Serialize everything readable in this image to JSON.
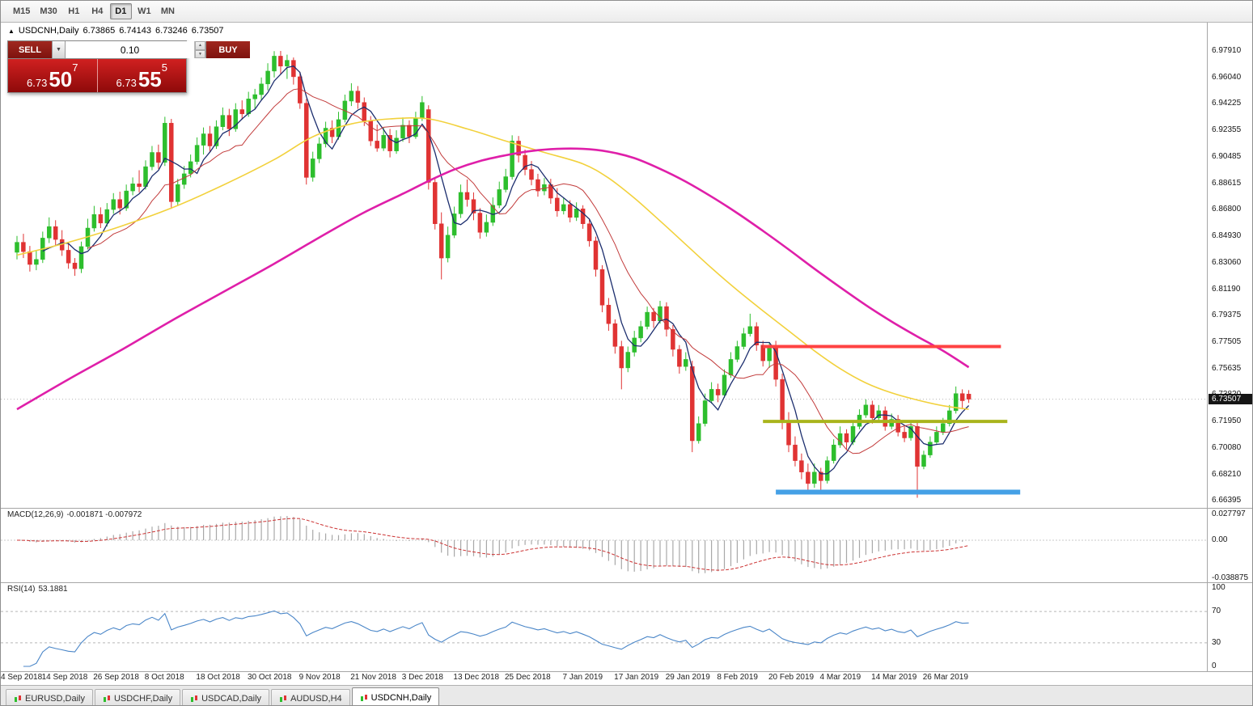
{
  "toolbar": {
    "timeframes": [
      {
        "label": "M15",
        "active": false
      },
      {
        "label": "M30",
        "active": false
      },
      {
        "label": "H1",
        "active": false
      },
      {
        "label": "H4",
        "active": false
      },
      {
        "label": "D1",
        "active": true
      },
      {
        "label": "W1",
        "active": false
      },
      {
        "label": "MN",
        "active": false
      }
    ]
  },
  "icons": {
    "collapse": "▲",
    "dropdown": "▼",
    "spin_up": "▲",
    "spin_down": "▼"
  },
  "chart": {
    "header": {
      "symbol_tf": "USDCNH,Daily",
      "open": "6.73865",
      "high": "6.74143",
      "low": "6.73246",
      "close": "6.73507"
    },
    "trade_panel": {
      "sell_label": "SELL",
      "buy_label": "BUY",
      "volume": "0.10",
      "sell_price_big": "6.73",
      "sell_price_pips": "50",
      "sell_price_sup": "7",
      "buy_price_big": "6.73",
      "buy_price_pips": "55",
      "buy_price_sup": "5"
    },
    "price_scale": [
      "6.97910",
      "6.96040",
      "6.94225",
      "6.92355",
      "6.90485",
      "6.88615",
      "6.86800",
      "6.84930",
      "6.83060",
      "6.81190",
      "6.79375",
      "6.77505",
      "6.75635",
      "6.73820",
      "6.71950",
      "6.70080",
      "6.68210",
      "6.66395"
    ],
    "current_price_label": "6.73507"
  },
  "indicators": {
    "macd": {
      "name": "MACD(12,26,9)",
      "values": "-0.001871 -0.007972",
      "scale": [
        "0.027797",
        "0.00",
        "-0.038875"
      ]
    },
    "rsi": {
      "name": "RSI(14)",
      "value": "53.1881",
      "scale": [
        "100",
        "70",
        "30",
        "0"
      ]
    }
  },
  "tabs": [
    {
      "label": "EURUSD,Daily",
      "active": false
    },
    {
      "label": "USDCHF,Daily",
      "active": false
    },
    {
      "label": "USDCAD,Daily",
      "active": false
    },
    {
      "label": "AUDUSD,H4",
      "active": false
    },
    {
      "label": "USDCNH,Daily",
      "active": true
    }
  ],
  "chart_data": {
    "type": "candlestick",
    "symbol": "USDCNH",
    "timeframe": "Daily",
    "current_price": 6.73507,
    "ylim": [
      6.66395,
      6.9791
    ],
    "x_tick_labels": [
      "4 Sep 2018",
      "14 Sep 2018",
      "26 Sep 2018",
      "8 Oct 2018",
      "18 Oct 2018",
      "30 Oct 2018",
      "9 Nov 2018",
      "21 Nov 2018",
      "3 Dec 2018",
      "13 Dec 2018",
      "25 Dec 2018",
      "7 Jan 2019",
      "17 Jan 2019",
      "29 Jan 2019",
      "8 Feb 2019",
      "20 Feb 2019",
      "4 Mar 2019",
      "14 Mar 2019",
      "26 Mar 2019"
    ],
    "x_tick_indices": [
      0,
      8,
      16,
      24,
      32,
      40,
      48,
      56,
      64,
      72,
      80,
      89,
      97,
      105,
      113,
      121,
      129,
      137,
      145
    ],
    "candles": [
      [
        6.838,
        6.8495,
        6.833,
        6.845
      ],
      [
        6.845,
        6.851,
        6.834,
        6.8385
      ],
      [
        6.8385,
        6.8425,
        6.8245,
        6.8295
      ],
      [
        6.8295,
        6.8395,
        6.8255,
        6.833
      ],
      [
        6.833,
        6.8525,
        6.8305,
        6.848
      ],
      [
        6.848,
        6.8625,
        6.8445,
        6.856
      ],
      [
        6.856,
        6.8605,
        6.8425,
        6.847
      ],
      [
        6.847,
        6.8535,
        6.8355,
        6.8395
      ],
      [
        6.8395,
        6.8445,
        6.8265,
        6.8305
      ],
      [
        6.8305,
        6.834,
        6.8215,
        6.8265
      ],
      [
        6.8265,
        6.8455,
        6.8235,
        6.842
      ],
      [
        6.842,
        6.8615,
        6.84,
        6.855
      ],
      [
        6.855,
        6.8705,
        6.8525,
        6.8645
      ],
      [
        6.8645,
        6.8695,
        6.855,
        6.8585
      ],
      [
        6.8585,
        6.8725,
        6.856,
        6.868
      ],
      [
        6.868,
        6.8795,
        6.865,
        6.875
      ],
      [
        6.875,
        6.8805,
        6.8645,
        6.869
      ],
      [
        6.869,
        6.8855,
        6.867,
        6.881
      ],
      [
        6.881,
        6.8905,
        6.878,
        6.886
      ],
      [
        6.886,
        6.8955,
        6.88,
        6.884
      ],
      [
        6.884,
        6.9025,
        6.882,
        6.898
      ],
      [
        6.898,
        6.9125,
        6.8955,
        6.908
      ],
      [
        6.908,
        6.9135,
        6.8965,
        6.901
      ],
      [
        6.901,
        6.933,
        6.8985,
        6.9285
      ],
      [
        6.9285,
        6.9315,
        6.8685,
        6.8735
      ],
      [
        6.8735,
        6.8895,
        6.8705,
        6.8855
      ],
      [
        6.8855,
        6.8985,
        6.8825,
        6.893
      ],
      [
        6.893,
        6.9065,
        6.8905,
        6.9015
      ],
      [
        6.9015,
        6.9185,
        6.8995,
        6.913
      ],
      [
        6.913,
        6.9255,
        6.9065,
        6.921
      ],
      [
        6.921,
        6.9265,
        6.9085,
        6.9125
      ],
      [
        6.9125,
        6.9305,
        6.9105,
        6.926
      ],
      [
        6.926,
        6.9395,
        6.9235,
        6.934
      ],
      [
        6.934,
        6.9385,
        6.9195,
        6.9245
      ],
      [
        6.9245,
        6.9425,
        6.9225,
        6.938
      ],
      [
        6.938,
        6.9445,
        6.931,
        6.935
      ],
      [
        6.935,
        6.9505,
        6.933,
        6.9455
      ],
      [
        6.9455,
        6.9525,
        6.9385,
        6.9485
      ],
      [
        6.9485,
        6.9605,
        6.9445,
        6.956
      ],
      [
        6.956,
        6.9705,
        6.9515,
        6.965
      ],
      [
        6.965,
        6.979,
        6.9605,
        6.9755
      ],
      [
        6.9755,
        6.9791,
        6.9625,
        6.9685
      ],
      [
        6.9685,
        6.9765,
        6.9595,
        6.9725
      ],
      [
        6.9725,
        6.9745,
        6.9555,
        6.961
      ],
      [
        6.961,
        6.9645,
        6.9385,
        6.9425
      ],
      [
        6.9425,
        6.9455,
        6.8855,
        6.8905
      ],
      [
        6.8905,
        6.9085,
        6.8875,
        6.9035
      ],
      [
        6.9035,
        6.9185,
        6.9005,
        6.914
      ],
      [
        6.914,
        6.9295,
        6.9115,
        6.925
      ],
      [
        6.925,
        6.9305,
        6.9145,
        6.919
      ],
      [
        6.919,
        6.9365,
        6.917,
        6.931
      ],
      [
        6.931,
        6.9485,
        6.929,
        6.944
      ],
      [
        6.944,
        6.9565,
        6.9405,
        6.951
      ],
      [
        6.951,
        6.9545,
        6.9385,
        6.943
      ],
      [
        6.943,
        6.9465,
        6.9265,
        6.93
      ],
      [
        6.93,
        6.9335,
        6.9125,
        6.916
      ],
      [
        6.916,
        6.9275,
        6.9085,
        6.911
      ],
      [
        6.911,
        6.9255,
        6.909,
        6.92
      ],
      [
        6.92,
        6.9245,
        6.9045,
        6.909
      ],
      [
        6.909,
        6.9235,
        6.907,
        6.918
      ],
      [
        6.918,
        6.9325,
        6.9155,
        6.927
      ],
      [
        6.927,
        6.9305,
        6.9145,
        6.919
      ],
      [
        6.919,
        6.9365,
        6.9175,
        6.932
      ],
      [
        6.932,
        6.9475,
        6.93,
        6.943
      ],
      [
        6.938,
        6.941,
        6.882,
        6.887
      ],
      [
        6.887,
        6.89,
        6.854,
        6.858
      ],
      [
        6.858,
        6.866,
        6.819,
        6.834
      ],
      [
        6.834,
        6.856,
        6.831,
        6.85
      ],
      [
        6.85,
        6.87,
        6.848,
        6.865
      ],
      [
        6.865,
        6.8855,
        6.862,
        6.88
      ],
      [
        6.88,
        6.889,
        6.87,
        6.875
      ],
      [
        6.875,
        6.88,
        6.8605,
        6.8655
      ],
      [
        6.8655,
        6.869,
        6.8475,
        6.852
      ],
      [
        6.852,
        6.8645,
        6.849,
        6.859
      ],
      [
        6.859,
        6.8765,
        6.8565,
        6.871
      ],
      [
        6.871,
        6.8875,
        6.869,
        6.882
      ],
      [
        6.882,
        6.8965,
        6.88,
        6.891
      ],
      [
        6.891,
        6.92,
        6.889,
        6.916
      ],
      [
        6.916,
        6.9195,
        6.901,
        6.906
      ],
      [
        6.906,
        6.91,
        6.892,
        6.896
      ],
      [
        6.896,
        6.902,
        6.885,
        6.889
      ],
      [
        6.889,
        6.893,
        6.877,
        6.881
      ],
      [
        6.881,
        6.89,
        6.878,
        6.8855
      ],
      [
        6.8855,
        6.8895,
        6.872,
        6.876
      ],
      [
        6.876,
        6.883,
        6.863,
        6.867
      ],
      [
        6.867,
        6.876,
        6.8645,
        6.8715
      ],
      [
        6.8715,
        6.8745,
        6.859,
        6.8625
      ],
      [
        6.8625,
        6.873,
        6.86,
        6.8685
      ],
      [
        6.8685,
        6.871,
        6.8545,
        6.858
      ],
      [
        6.858,
        6.861,
        6.842,
        6.846
      ],
      [
        6.846,
        6.849,
        6.821,
        6.826
      ],
      [
        6.826,
        6.829,
        6.796,
        6.801
      ],
      [
        6.801,
        6.806,
        6.783,
        6.788
      ],
      [
        6.788,
        6.791,
        6.767,
        6.772
      ],
      [
        6.772,
        6.776,
        6.742,
        6.757
      ],
      [
        6.757,
        6.772,
        6.754,
        6.768
      ],
      [
        6.768,
        6.783,
        6.765,
        6.778
      ],
      [
        6.778,
        6.79,
        6.775,
        6.786
      ],
      [
        6.786,
        6.8,
        6.784,
        6.796
      ],
      [
        6.796,
        6.799,
        6.785,
        6.79
      ],
      [
        6.79,
        6.804,
        6.788,
        6.8
      ],
      [
        6.8,
        6.803,
        6.779,
        6.784
      ],
      [
        6.784,
        6.787,
        6.765,
        6.77
      ],
      [
        6.77,
        6.773,
        6.753,
        6.758
      ],
      [
        6.758,
        6.768,
        6.755,
        6.763
      ],
      [
        6.758,
        6.762,
        6.698,
        6.706
      ],
      [
        6.706,
        6.723,
        6.704,
        6.718
      ],
      [
        6.718,
        6.739,
        6.716,
        6.734
      ],
      [
        6.734,
        6.747,
        6.732,
        6.742
      ],
      [
        6.742,
        6.746,
        6.733,
        6.738
      ],
      [
        6.738,
        6.756,
        6.736,
        6.752
      ],
      [
        6.752,
        6.768,
        6.75,
        6.763
      ],
      [
        6.763,
        6.776,
        6.761,
        6.772
      ],
      [
        6.772,
        6.785,
        6.77,
        6.781
      ],
      [
        6.781,
        6.795,
        6.779,
        6.786
      ],
      [
        6.786,
        6.789,
        6.769,
        6.773
      ],
      [
        6.773,
        6.776,
        6.758,
        6.762
      ],
      [
        6.762,
        6.7745,
        6.757,
        6.772
      ],
      [
        6.772,
        6.776,
        6.744,
        6.749
      ],
      [
        6.749,
        6.753,
        6.714,
        6.72
      ],
      [
        6.72,
        6.726,
        6.698,
        6.703
      ],
      [
        6.703,
        6.709,
        6.688,
        6.692
      ],
      [
        6.692,
        6.697,
        6.679,
        6.684
      ],
      [
        6.684,
        6.69,
        6.6695,
        6.676
      ],
      [
        6.676,
        6.69,
        6.673,
        6.684
      ],
      [
        6.684,
        6.687,
        6.669,
        6.678
      ],
      [
        6.678,
        6.695,
        6.676,
        6.692
      ],
      [
        6.692,
        6.707,
        6.69,
        6.703
      ],
      [
        6.703,
        6.716,
        6.701,
        6.711
      ],
      [
        6.711,
        6.714,
        6.7,
        6.705
      ],
      [
        6.705,
        6.72,
        6.703,
        6.716
      ],
      [
        6.716,
        6.728,
        6.714,
        6.724
      ],
      [
        6.724,
        6.735,
        6.722,
        6.731
      ],
      [
        6.731,
        6.734,
        6.718,
        6.722
      ],
      [
        6.722,
        6.731,
        6.72,
        6.727
      ],
      [
        6.727,
        6.73,
        6.713,
        6.716
      ],
      [
        6.716,
        6.725,
        6.714,
        6.721
      ],
      [
        6.721,
        6.724,
        6.709,
        6.712
      ],
      [
        6.712,
        6.716,
        6.705,
        6.708
      ],
      [
        6.708,
        6.72,
        6.706,
        6.716
      ],
      [
        6.716,
        6.719,
        6.666,
        6.688
      ],
      [
        6.688,
        6.699,
        6.686,
        6.696
      ],
      [
        6.696,
        6.709,
        6.694,
        6.705
      ],
      [
        6.705,
        6.716,
        6.703,
        6.712
      ],
      [
        6.712,
        6.722,
        6.71,
        6.718
      ],
      [
        6.718,
        6.731,
        6.716,
        6.727
      ],
      [
        6.727,
        6.744,
        6.725,
        6.739
      ],
      [
        6.739,
        6.742,
        6.728,
        6.734
      ],
      [
        6.73865,
        6.74143,
        6.73246,
        6.73507
      ]
    ],
    "overlays": {
      "sma_navy_period": 5,
      "sma_red_period": 12,
      "yellow_ma_points": [
        [
          0,
          6.836
        ],
        [
          8,
          6.845
        ],
        [
          16,
          6.856
        ],
        [
          24,
          6.869
        ],
        [
          32,
          6.885
        ],
        [
          40,
          6.903
        ],
        [
          46,
          6.919
        ],
        [
          52,
          6.928
        ],
        [
          58,
          6.9315
        ],
        [
          64,
          6.9315
        ],
        [
          70,
          6.9245
        ],
        [
          76,
          6.916
        ],
        [
          82,
          6.908
        ],
        [
          88,
          6.9
        ],
        [
          92,
          6.89
        ],
        [
          96,
          6.876
        ],
        [
          100,
          6.86
        ],
        [
          104,
          6.8435
        ],
        [
          108,
          6.827
        ],
        [
          112,
          6.8115
        ],
        [
          116,
          6.797
        ],
        [
          120,
          6.783
        ],
        [
          124,
          6.769
        ],
        [
          128,
          6.7565
        ],
        [
          132,
          6.7465
        ],
        [
          136,
          6.7395
        ],
        [
          140,
          6.7345
        ],
        [
          144,
          6.7305
        ],
        [
          148,
          6.728
        ]
      ],
      "magenta_ma_points": [
        [
          0,
          6.728
        ],
        [
          8,
          6.749
        ],
        [
          16,
          6.769
        ],
        [
          24,
          6.79
        ],
        [
          32,
          6.81
        ],
        [
          40,
          6.83
        ],
        [
          48,
          6.851
        ],
        [
          54,
          6.866
        ],
        [
          60,
          6.879
        ],
        [
          64,
          6.888
        ],
        [
          68,
          6.896
        ],
        [
          72,
          6.902
        ],
        [
          76,
          6.906
        ],
        [
          80,
          6.909
        ],
        [
          84,
          6.9105
        ],
        [
          88,
          6.9105
        ],
        [
          92,
          6.9085
        ],
        [
          96,
          6.904
        ],
        [
          100,
          6.8965
        ],
        [
          104,
          6.8875
        ],
        [
          108,
          6.877
        ],
        [
          112,
          6.8655
        ],
        [
          116,
          6.853
        ],
        [
          120,
          6.84
        ],
        [
          124,
          6.8265
        ],
        [
          128,
          6.8135
        ],
        [
          132,
          6.801
        ],
        [
          136,
          6.7895
        ],
        [
          140,
          6.779
        ],
        [
          144,
          6.769
        ],
        [
          148,
          6.7575
        ]
      ]
    },
    "hlines": [
      {
        "price": 6.772,
        "from": 116,
        "to": 153,
        "color": "#ff4242",
        "width": 4
      },
      {
        "price": 6.7195,
        "from": 116,
        "to": 154,
        "color": "#a9b41c",
        "width": 4
      },
      {
        "price": 6.67,
        "from": 118,
        "to": 156,
        "color": "#45a0e6",
        "width": 6
      }
    ],
    "macd": {
      "params": [
        12,
        26,
        9
      ],
      "value": -0.001871,
      "signal": -0.007972,
      "range": [
        -0.038875,
        0.027797
      ]
    },
    "rsi": {
      "period": 14,
      "value": 53.1881,
      "levels": [
        70,
        30
      ],
      "range": [
        0,
        100
      ]
    }
  },
  "colors": {
    "up": "#2dbe2d",
    "down": "#e03333",
    "ma_navy": "#1c2e6e",
    "ma_red": "#c23b3b",
    "ma_yellow": "#f2d13c",
    "ma_magenta": "#df1fa9",
    "macd_hist": "#a8a8a8",
    "macd_signal": "#cc3333",
    "rsi_line": "#4a86c8",
    "trade_button": "#8c1a14",
    "price_box": "#c11414"
  }
}
